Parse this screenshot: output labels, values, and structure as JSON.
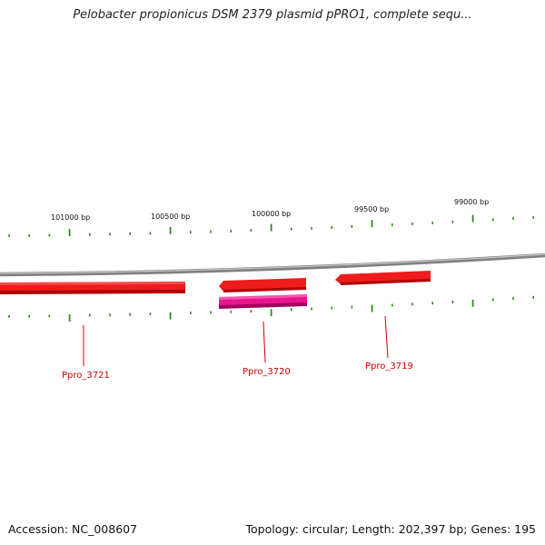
{
  "title": "Pelobacter propionicus DSM 2379 plasmid pPRO1, complete sequ...",
  "accession_text": "Accession: NC_008607",
  "summary_text": "Topology: circular; Length: 202,397 bp; Genes: 195",
  "ruler": {
    "labels": [
      "101000 bp",
      "100500 bp",
      "100000 bp",
      "99500 bp",
      "99000 bp"
    ],
    "tick_color": "#2e8b1e"
  },
  "genes": [
    {
      "label": "Ppro_3721",
      "color": "#ee1c1c",
      "strand": "forward",
      "has_label": true
    },
    {
      "label": "Ppro_3720",
      "color": "#ee1c1c",
      "strand": "reverse",
      "has_label": true
    },
    {
      "label": "",
      "color": "#e8158c",
      "strand": "reverse",
      "has_label": false
    },
    {
      "label": "Ppro_3719",
      "color": "#ee1c1c",
      "strand": "reverse",
      "has_label": true
    }
  ],
  "colors": {
    "backbone": "#808080",
    "gene_red": "#ee1c1c",
    "gene_pink": "#e8158c",
    "label_red": "#cc0000"
  }
}
